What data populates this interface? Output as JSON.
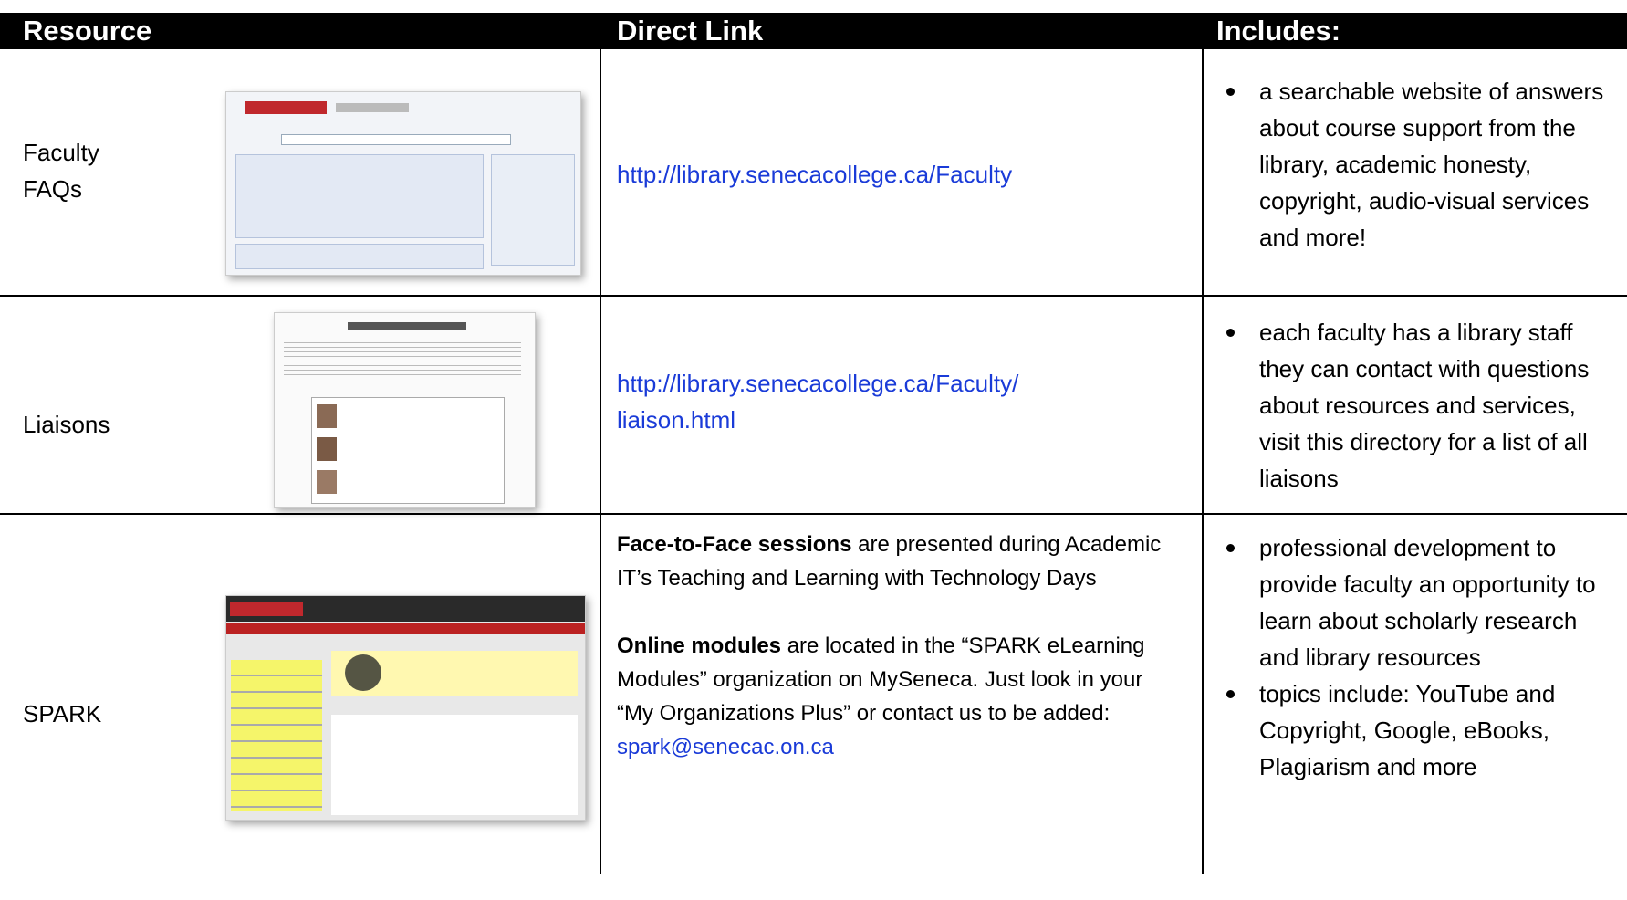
{
  "header": {
    "columns": [
      "Resource",
      "Direct Link",
      "Includes:"
    ]
  },
  "table": {
    "rows": [
      {
        "resource": "Faculty FAQs",
        "link": "http://library.senecacollege.ca/Faculty",
        "includes": [
          "a searchable website of answers about course support from the library, academic honesty, copyright, audio-visual services and more!"
        ]
      },
      {
        "resource": "Liaisons",
        "link": "http://library.senecacollege.ca/Faculty/ liaison.html",
        "includes": [
          "each faculty has a library staff they can contact with questions about resources and services, visit this directory for a list of all liaisons"
        ]
      },
      {
        "resource": "SPARK",
        "description": [
          {
            "bold": "Face-to-Face sessions",
            "text": " are presented during Academic IT’s Teaching and Learning with Technology Days"
          },
          {
            "bold": "Online modules",
            "text": " are located in the “SPARK eLearning Modules” organization on MySeneca. Just look in your “My Organizations Plus” or contact us to be added: ",
            "link": "spark@senecac.on.ca"
          }
        ],
        "includes": [
          "professional development to provide faculty an opportunity to learn about scholarly research and library resources",
          "topics include: YouTube and Copyright, Google, eBooks, Plagiarism and more"
        ]
      }
    ]
  }
}
